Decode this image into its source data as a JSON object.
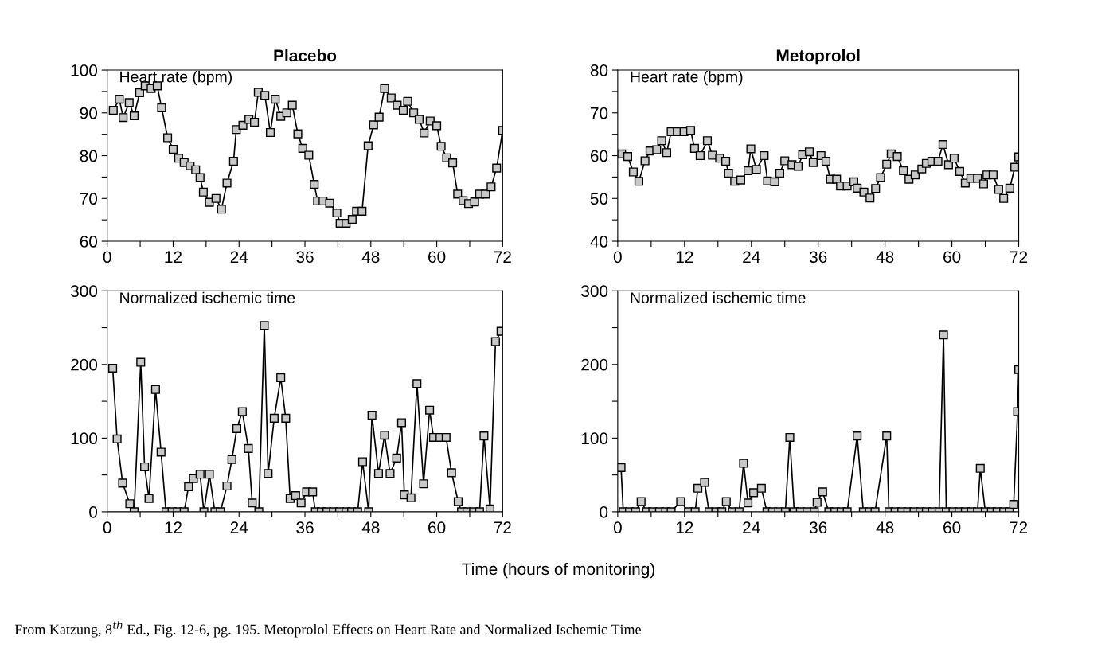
{
  "chart_data": [
    {
      "type": "line",
      "title": "Placebo",
      "ylabel": "Heart rate (bpm)",
      "marker": "square",
      "grid": false,
      "xlim": [
        0,
        72
      ],
      "ylim": [
        60,
        100
      ],
      "xticks": [
        0,
        {
          "value": 6,
          "label": null
        },
        12,
        {
          "value": 18,
          "label": null
        },
        24,
        {
          "value": 30,
          "label": null
        },
        36,
        {
          "value": 42,
          "label": null
        },
        48,
        {
          "value": 54,
          "label": null
        },
        60,
        {
          "value": 66,
          "label": null
        },
        72
      ],
      "yticks": [
        60,
        {
          "value": 65,
          "label": null
        },
        70,
        {
          "value": 75,
          "label": null
        },
        80,
        {
          "value": 85,
          "label": null
        },
        90,
        {
          "value": 95,
          "label": null
        },
        100
      ],
      "series": [
        {
          "color": "#000000",
          "x": [
            1.1,
            2.2,
            2.9,
            4.0,
            4.9,
            5.9,
            6.9,
            8.0,
            9.1,
            9.9,
            11.0,
            12.0,
            13.0,
            14.0,
            15.1,
            16.1,
            16.9,
            17.5,
            18.6,
            19.8,
            20.8,
            21.8,
            23.0,
            23.5,
            24.7,
            25.8,
            26.8,
            27.5,
            28.7,
            29.7,
            30.6,
            31.6,
            32.7,
            33.7,
            34.7,
            35.6,
            36.7,
            37.7,
            38.3,
            39.3,
            40.5,
            41.8,
            42.4,
            43.5,
            44.6,
            45.4,
            46.4,
            47.5,
            48.5,
            49.5,
            50.5,
            51.7,
            52.8,
            53.9,
            54.7,
            55.8,
            56.8,
            57.7,
            58.8,
            60.0,
            60.8,
            61.8,
            62.9,
            63.8,
            64.8,
            65.8,
            66.9,
            67.8,
            68.9,
            69.9,
            70.9,
            72.0
          ],
          "values": [
            90.6,
            93.2,
            88.9,
            92.4,
            89.3,
            94.7,
            96.3,
            95.7,
            96.3,
            91.2,
            84.2,
            81.5,
            79.4,
            78.4,
            77.6,
            76.7,
            74.9,
            71.5,
            69.1,
            70.0,
            67.5,
            73.6,
            78.7,
            86.1,
            87.1,
            88.5,
            87.8,
            94.8,
            94.1,
            85.4,
            93.2,
            89.2,
            90.0,
            91.8,
            85.1,
            81.7,
            80.1,
            73.3,
            69.4,
            69.4,
            68.9,
            66.6,
            64.2,
            64.2,
            65.1,
            67.0,
            67.0,
            82.3,
            87.2,
            89.0,
            95.7,
            93.5,
            91.8,
            90.6,
            92.7,
            90.0,
            88.5,
            85.3,
            88.1,
            87.0,
            82.2,
            79.5,
            78.3,
            71.0,
            69.5,
            68.8,
            69.2,
            71.0,
            71.0,
            72.7,
            77.1,
            85.9
          ]
        }
      ]
    },
    {
      "type": "line",
      "title": "Metoprolol",
      "ylabel": "Heart rate (bpm)",
      "marker": "square",
      "grid": false,
      "xlim": [
        0,
        72
      ],
      "ylim": [
        40,
        80
      ],
      "xticks": [
        0,
        {
          "value": 6,
          "label": null
        },
        12,
        {
          "value": 18,
          "label": null
        },
        24,
        {
          "value": 30,
          "label": null
        },
        36,
        {
          "value": 42,
          "label": null
        },
        48,
        {
          "value": 54,
          "label": null
        },
        60,
        {
          "value": 66,
          "label": null
        },
        72
      ],
      "yticks": [
        40,
        {
          "value": 45,
          "label": null
        },
        50,
        {
          "value": 55,
          "label": null
        },
        60,
        {
          "value": 65,
          "label": null
        },
        70,
        {
          "value": 75,
          "label": null
        },
        80
      ],
      "series": [
        {
          "color": "#000000",
          "x": [
            0.7,
            1.8,
            2.8,
            3.8,
            4.9,
            5.8,
            7.0,
            7.9,
            8.8,
            9.6,
            10.7,
            11.9,
            13.1,
            13.8,
            14.8,
            16.1,
            17.0,
            18.3,
            19.4,
            19.9,
            21.0,
            22.1,
            23.4,
            23.9,
            24.9,
            26.3,
            26.9,
            28.2,
            29.1,
            30.0,
            31.3,
            32.4,
            33.2,
            34.4,
            35.1,
            36.5,
            37.4,
            38.2,
            39.3,
            40.0,
            41.2,
            42.4,
            43.0,
            44.2,
            45.3,
            46.3,
            47.2,
            48.3,
            49.1,
            50.2,
            51.3,
            52.3,
            53.4,
            54.6,
            55.4,
            56.4,
            57.5,
            58.4,
            59.4,
            60.4,
            61.4,
            62.4,
            63.4,
            64.6,
            65.7,
            66.3,
            67.4,
            68.4,
            69.3,
            70.4,
            71.3,
            72.0
          ],
          "values": [
            60.4,
            59.8,
            56.2,
            54.0,
            58.8,
            61.1,
            61.4,
            63.5,
            60.7,
            65.6,
            65.6,
            65.6,
            65.9,
            61.7,
            60.0,
            63.5,
            60.1,
            59.4,
            58.7,
            55.9,
            54.0,
            54.3,
            56.5,
            61.6,
            56.8,
            60.0,
            54.1,
            53.9,
            55.9,
            58.8,
            57.9,
            57.5,
            60.2,
            60.9,
            58.4,
            60.0,
            58.7,
            54.5,
            54.5,
            52.9,
            52.9,
            53.9,
            52.4,
            51.5,
            50.1,
            52.3,
            54.9,
            58.0,
            60.4,
            59.8,
            56.5,
            54.5,
            55.5,
            56.9,
            58.2,
            58.7,
            58.7,
            62.6,
            57.9,
            59.4,
            56.3,
            53.6,
            54.7,
            54.7,
            53.4,
            55.5,
            55.5,
            52.1,
            50.0,
            52.4,
            57.3,
            59.7
          ]
        }
      ]
    },
    {
      "type": "line",
      "ylabel": "Normalized ischemic time",
      "xlabel": "Time (hours of monitoring)",
      "marker": "square",
      "grid": false,
      "xlim": [
        0,
        72
      ],
      "ylim": [
        0,
        300
      ],
      "xticks": [
        0,
        {
          "value": 6,
          "label": null
        },
        12,
        {
          "value": 18,
          "label": null
        },
        24,
        {
          "value": 30,
          "label": null
        },
        36,
        {
          "value": 42,
          "label": null
        },
        48,
        {
          "value": 54,
          "label": null
        },
        60,
        {
          "value": 66,
          "label": null
        },
        72
      ],
      "yticks": [
        0,
        {
          "value": 50,
          "label": null
        },
        100,
        {
          "value": 150,
          "label": null
        },
        200,
        {
          "value": 250,
          "label": null
        },
        300
      ],
      "annotations": [
        "From Katzung, 8$^{th}$ Ed., Fig. 12-6, pg. 195. Metoprolol Effects on Heart Rate and Normalized Ischemic Time"
      ],
      "series": [
        {
          "color": "#000000",
          "x": [
            1.0,
            1.8,
            2.8,
            4.1,
            4.9,
            6.1,
            6.8,
            7.6,
            8.8,
            9.8,
            10.7,
            11.8,
            12.8,
            14.0,
            14.8,
            15.7,
            16.9,
            17.6,
            18.6,
            19.6,
            20.6,
            21.8,
            22.7,
            23.6,
            24.6,
            25.7,
            26.4,
            27.6,
            28.6,
            29.3,
            30.4,
            31.6,
            32.5,
            33.3,
            34.3,
            35.3,
            36.3,
            37.4,
            37.9,
            39.0,
            40.0,
            41.2,
            42.3,
            43.5,
            44.5,
            45.6,
            46.5,
            47.6,
            48.2,
            49.4,
            50.5,
            51.5,
            52.7,
            53.6,
            54.1,
            55.3,
            56.4,
            57.6,
            58.7,
            59.4,
            60.6,
            61.7,
            62.7,
            63.9,
            64.5,
            65.5,
            66.7,
            67.8,
            68.6,
            69.7,
            70.7,
            71.7
          ],
          "values": [
            195,
            99,
            39,
            11,
            0,
            203,
            61,
            18,
            166,
            81,
            0,
            0,
            0,
            0,
            34,
            45,
            51,
            0,
            51,
            0,
            0,
            35,
            71,
            113,
            136,
            86,
            12,
            0,
            253,
            52,
            127,
            182,
            127,
            18,
            22,
            12,
            27,
            27,
            0,
            0,
            0,
            0,
            0,
            0,
            0,
            0,
            68,
            0,
            131,
            52,
            104,
            52,
            73,
            121,
            23,
            19,
            174,
            38,
            138,
            101,
            101,
            101,
            53,
            14,
            0,
            0,
            0,
            0,
            103,
            4,
            231,
            245
          ]
        }
      ]
    },
    {
      "type": "line",
      "ylabel": "Normalized ischemic time",
      "marker": "square",
      "grid": false,
      "xlim": [
        0,
        72
      ],
      "ylim": [
        0,
        300
      ],
      "xticks": [
        0,
        {
          "value": 6,
          "label": null
        },
        12,
        {
          "value": 18,
          "label": null
        },
        24,
        {
          "value": 30,
          "label": null
        },
        36,
        {
          "value": 42,
          "label": null
        },
        48,
        {
          "value": 54,
          "label": null
        },
        60,
        {
          "value": 66,
          "label": null
        },
        72
      ],
      "yticks": [
        0,
        {
          "value": 50,
          "label": null
        },
        100,
        {
          "value": 150,
          "label": null
        },
        200,
        {
          "value": 250,
          "label": null
        },
        300
      ],
      "series": [
        {
          "color": "#000000",
          "x": [
            0.6,
            1.0,
            2.1,
            3.2,
            4.2,
            5.2,
            6.3,
            7.5,
            8.6,
            9.6,
            11.3,
            12.7,
            13.9,
            14.4,
            15.6,
            16.4,
            17.6,
            18.7,
            19.5,
            20.6,
            21.8,
            22.6,
            23.4,
            24.4,
            25.8,
            26.8,
            27.8,
            28.9,
            30.1,
            30.9,
            31.7,
            32.8,
            34.0,
            35.3,
            35.8,
            36.8,
            37.9,
            39.0,
            40.1,
            41.2,
            43.0,
            44.1,
            45.2,
            46.2,
            48.3,
            48.7,
            49.8,
            51.0,
            52.1,
            53.2,
            54.3,
            55.4,
            56.5,
            57.7,
            58.5,
            59.0,
            60.2,
            61.3,
            62.4,
            63.5,
            64.6,
            65.1,
            66.0,
            67.1,
            68.1,
            69.3,
            70.3,
            71.1,
            71.8,
            72.0
          ],
          "values": [
            60,
            0,
            0,
            0,
            14,
            0,
            0,
            0,
            0,
            0,
            14,
            0,
            0,
            32,
            40,
            0,
            0,
            0,
            14,
            0,
            0,
            66,
            12,
            26,
            32,
            0,
            0,
            0,
            0,
            101,
            0,
            0,
            0,
            0,
            13,
            27,
            0,
            0,
            0,
            0,
            103,
            0,
            0,
            0,
            103,
            0,
            0,
            0,
            0,
            0,
            0,
            0,
            0,
            0,
            240,
            0,
            0,
            0,
            0,
            0,
            0,
            59,
            0,
            0,
            0,
            0,
            0,
            10,
            136,
            193
          ]
        }
      ]
    }
  ]
}
